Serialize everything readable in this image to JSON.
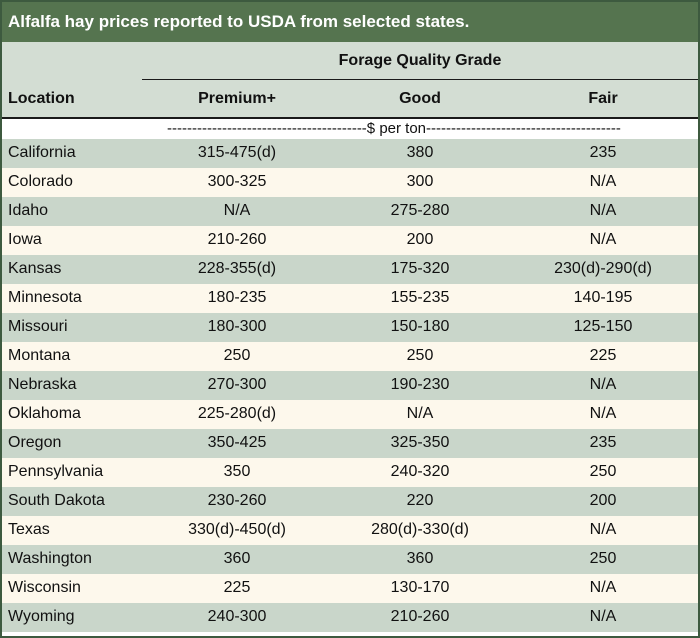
{
  "title": "Alfalfa hay prices reported to USDA from selected states.",
  "header": {
    "group_title": "Forage Quality Grade",
    "location": "Location",
    "premium": "Premium+",
    "good": "Good",
    "fair": "Fair"
  },
  "units": "----------------------------------------$ per ton---------------------------------------",
  "rows": [
    {
      "location": "California",
      "premium": "315-475(d)",
      "good": "380",
      "fair": "235"
    },
    {
      "location": "Colorado",
      "premium": "300-325",
      "good": "300",
      "fair": "N/A"
    },
    {
      "location": "Idaho",
      "premium": "N/A",
      "good": "275-280",
      "fair": "N/A"
    },
    {
      "location": "Iowa",
      "premium": "210-260",
      "good": "200",
      "fair": "N/A"
    },
    {
      "location": "Kansas",
      "premium": "228-355(d)",
      "good": "175-320",
      "fair": "230(d)-290(d)"
    },
    {
      "location": "Minnesota",
      "premium": "180-235",
      "good": "155-235",
      "fair": "140-195"
    },
    {
      "location": "Missouri",
      "premium": "180-300",
      "good": "150-180",
      "fair": "125-150"
    },
    {
      "location": "Montana",
      "premium": "250",
      "good": "250",
      "fair": "225"
    },
    {
      "location": "Nebraska",
      "premium": "270-300",
      "good": "190-230",
      "fair": "N/A"
    },
    {
      "location": "Oklahoma",
      "premium": "225-280(d)",
      "good": "N/A",
      "fair": "N/A"
    },
    {
      "location": "Oregon",
      "premium": "350-425",
      "good": "325-350",
      "fair": "235"
    },
    {
      "location": "Pennsylvania",
      "premium": "350",
      "good": "240-320",
      "fair": "250"
    },
    {
      "location": "South Dakota",
      "premium": "230-260",
      "good": "220",
      "fair": "200"
    },
    {
      "location": "Texas",
      "premium": "330(d)-450(d)",
      "good": "280(d)-330(d)",
      "fair": "N/A"
    },
    {
      "location": "Washington",
      "premium": "360",
      "good": "360",
      "fair": "250"
    },
    {
      "location": "Wisconsin",
      "premium": "225",
      "good": "130-170",
      "fair": "N/A"
    },
    {
      "location": "Wyoming",
      "premium": "240-300",
      "good": "210-260",
      "fair": "N/A"
    }
  ],
  "colors": {
    "title_bg": "#55744f",
    "header_bg": "#d3ddd3",
    "row_alt": "#c9d6ca",
    "row_plain": "#fdf8ec"
  }
}
